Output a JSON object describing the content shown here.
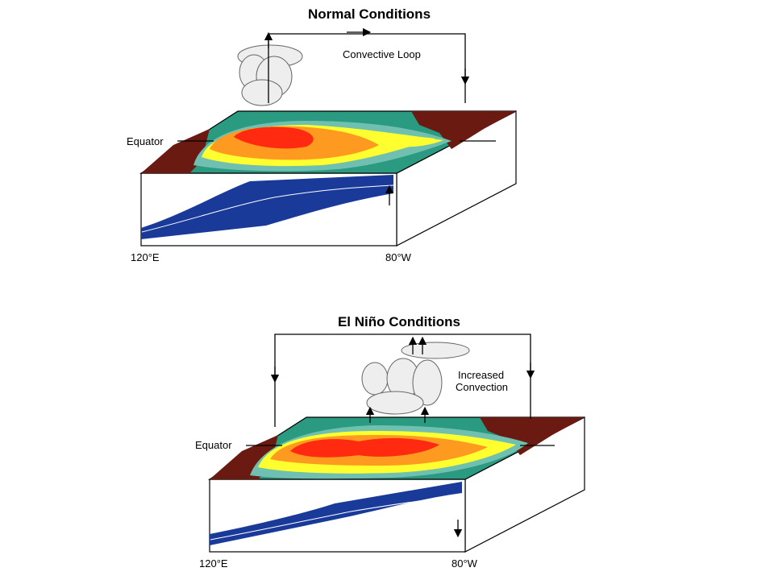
{
  "diagrams": [
    {
      "title": "Normal Conditions",
      "loop_label": [
        "Convective Loop"
      ],
      "equator_label": "Equator",
      "west_label": "120°E",
      "east_label": "80°W"
    },
    {
      "title": "El Niño Conditions",
      "loop_label": [
        "Increased",
        "Convection"
      ],
      "equator_label": "Equator",
      "west_label": "120°E",
      "east_label": "80°W"
    }
  ]
}
